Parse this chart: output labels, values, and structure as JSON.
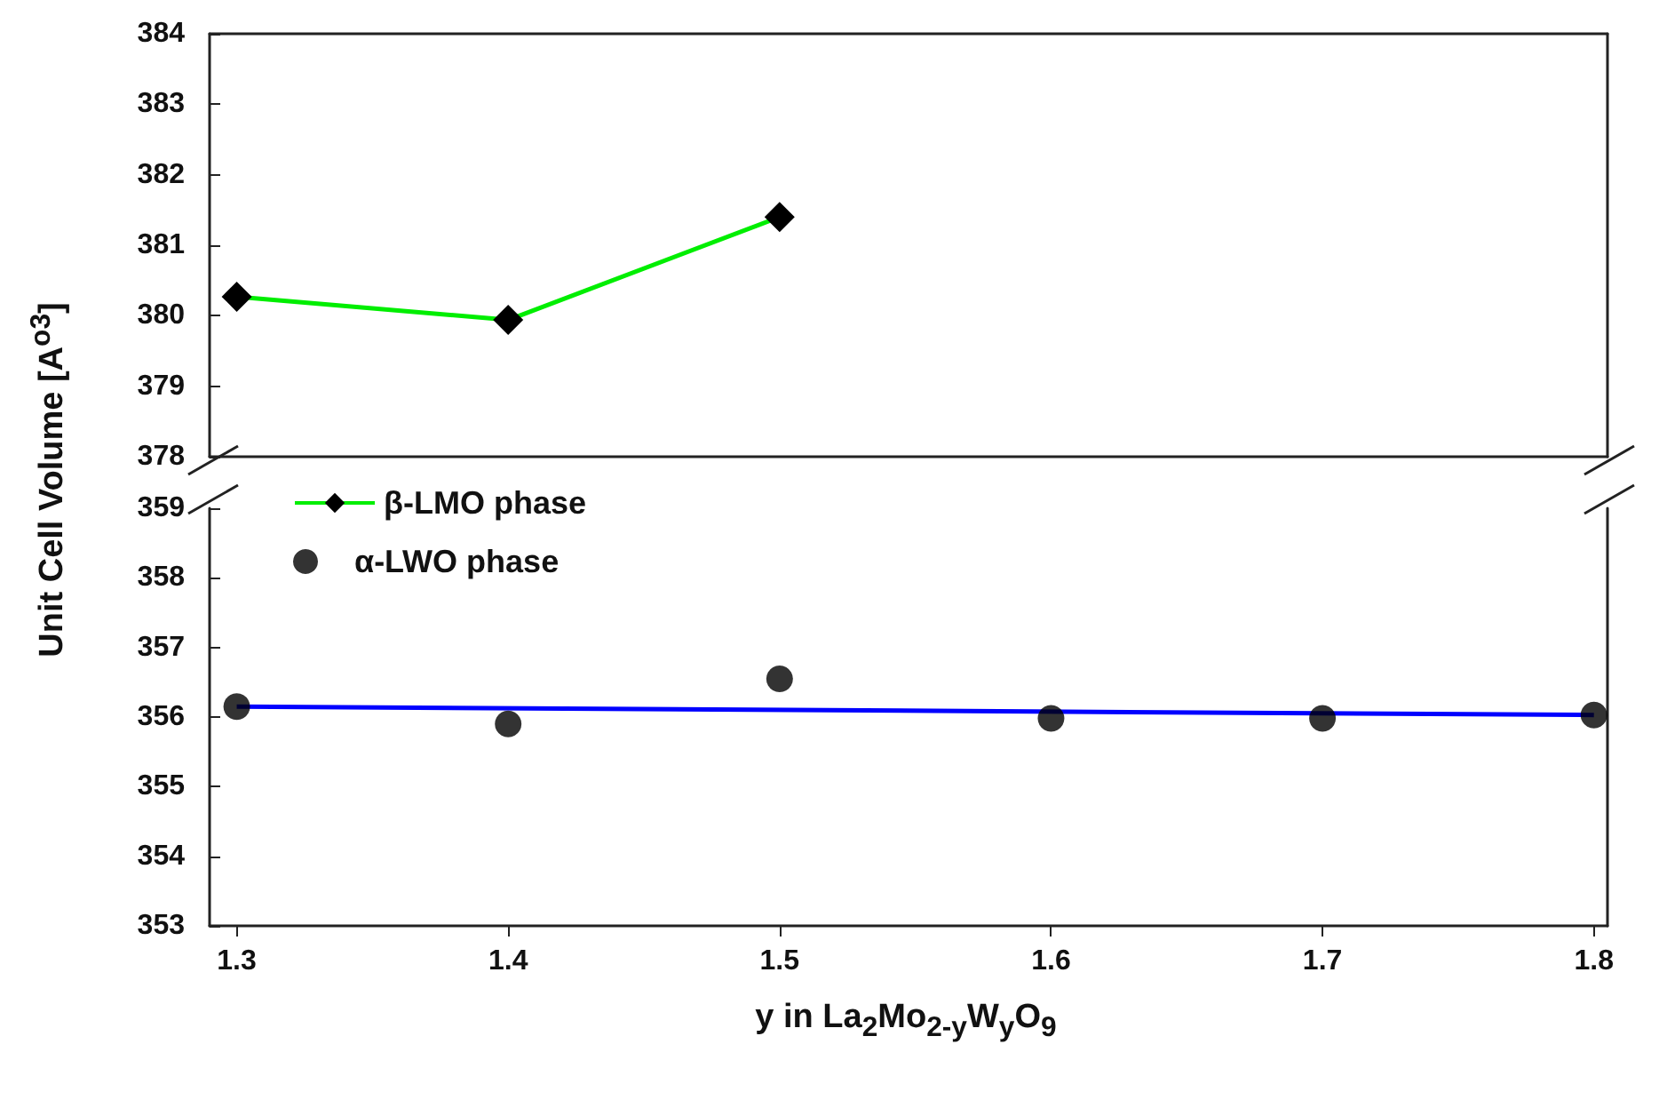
{
  "chart_data": [
    {
      "type": "line",
      "x": [
        1.3,
        1.4,
        1.5
      ],
      "xlim": [
        1.29,
        1.805
      ],
      "xticks": [
        1.3,
        1.4,
        1.5,
        1.6,
        1.7,
        1.8
      ],
      "ylim": [
        378,
        384
      ],
      "yticks": [
        378,
        379,
        380,
        381,
        382,
        383,
        384
      ],
      "tick_labels": "y",
      "legend": "bottom left",
      "marker": "diamond",
      "series": [
        {
          "name": "β-LMO phase",
          "color": "#00ee00",
          "values": [
            380.27,
            379.94,
            381.4
          ]
        }
      ]
    },
    {
      "type": "scatter",
      "x": [
        1.3,
        1.4,
        1.5,
        1.6,
        1.7,
        1.8
      ],
      "xlim": [
        1.29,
        1.805
      ],
      "xticks": [
        1.3,
        1.4,
        1.5,
        1.6,
        1.7,
        1.8
      ],
      "ylim": [
        353,
        359
      ],
      "yticks": [
        353,
        354,
        355,
        356,
        357,
        358,
        359
      ],
      "legend": "top left",
      "marker": "circle",
      "xlabel": "y in La$_{2}$Mo$_{2-y}$W$_{y}$O$_{9}$",
      "ylabel": "Unit Cell Volume [A$^{o3}$]",
      "series": [
        {
          "name": "α-LWO phase",
          "color": "#000000",
          "values": [
            356.15,
            355.9,
            356.55,
            355.98,
            355.98,
            356.03
          ]
        },
        {
          "type": "line",
          "marker": "none",
          "color": "#0000ff",
          "x": [
            1.3,
            1.8
          ],
          "values": [
            356.15,
            356.03
          ]
        }
      ]
    }
  ]
}
